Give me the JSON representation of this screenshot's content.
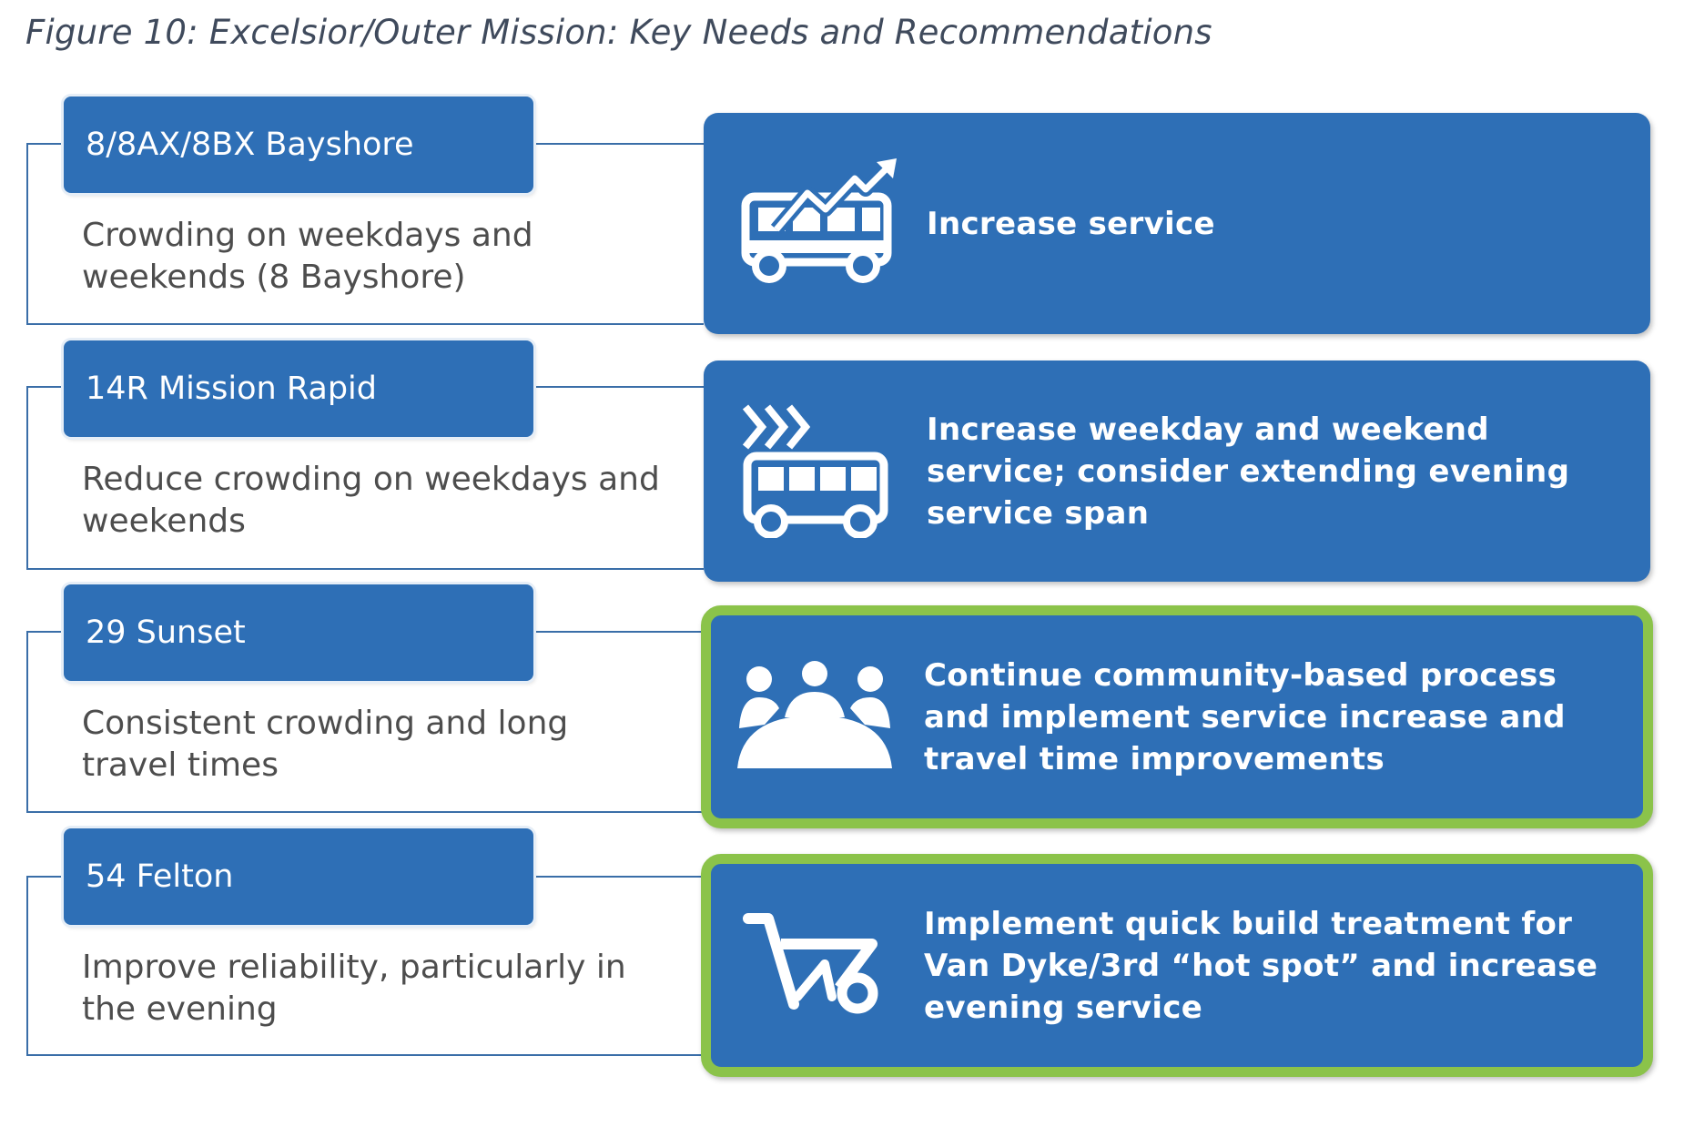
{
  "figure": {
    "title": "Figure 10: Excelsior/Outer Mission: Key Needs and Recommendations"
  },
  "rows": [
    {
      "route": "8/8AX/8BX Bayshore",
      "need": "Crowding on weekdays and weekends (8 Bayshore)",
      "recommendation": "Increase service",
      "icon": "bus-trend-up-icon",
      "highlighted": false
    },
    {
      "route": "14R Mission Rapid",
      "need": "Reduce crowding on weekdays and weekends",
      "recommendation": "Increase weekday and weekend service; consider extending evening service span",
      "icon": "bus-fast-icon",
      "highlighted": false
    },
    {
      "route": "29 Sunset",
      "need": "Consistent crowding and long travel times",
      "recommendation": "Continue community-based process and implement service increase and travel time improvements",
      "icon": "community-meeting-icon",
      "highlighted": true
    },
    {
      "route": "54 Felton",
      "need": "Improve reliability, particularly in the evening",
      "recommendation": "Implement quick build treatment for Van Dyke/3rd “hot spot” and increase evening service",
      "icon": "wheelbarrow-icon",
      "highlighted": true
    }
  ],
  "colors": {
    "box_blue": "#2e6fb6",
    "connector_blue": "#3a6ea8",
    "highlight_green": "#8bc34a",
    "need_text": "#4d4d4d",
    "title_text": "#3f4a5c"
  }
}
